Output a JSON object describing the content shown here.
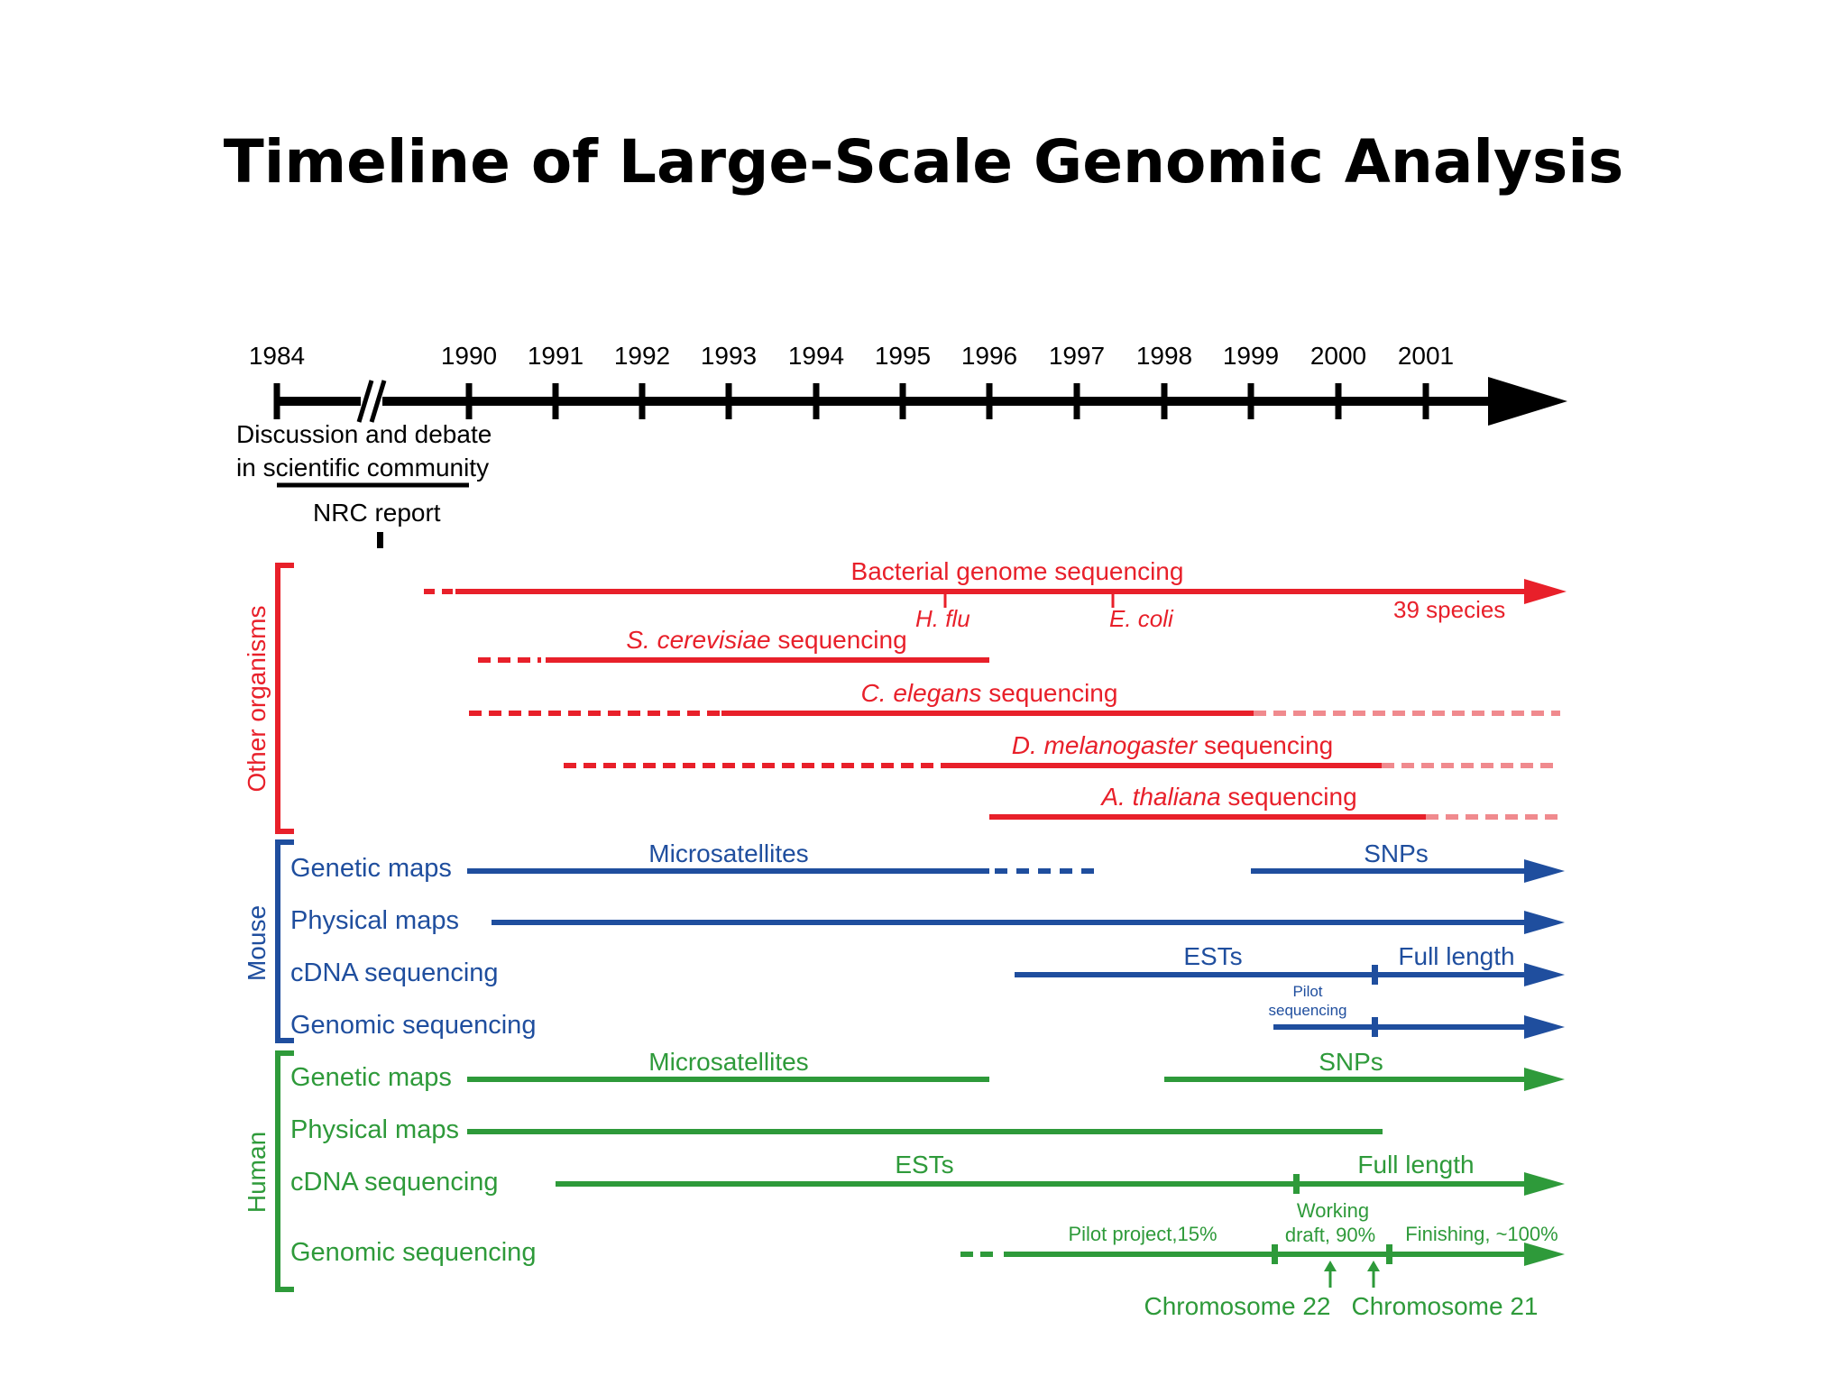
{
  "title": "Timeline of Large-Scale Genomic Analysis",
  "axis": {
    "years": [
      "1984",
      "1990",
      "1991",
      "1992",
      "1993",
      "1994",
      "1995",
      "1996",
      "1997",
      "1998",
      "1999",
      "2000",
      "2001"
    ]
  },
  "early": {
    "discussion_line1": "Discussion and debate",
    "discussion_line2": "in scientific community",
    "nrc_report": "NRC report"
  },
  "groups": {
    "other": {
      "label": "Other organisms",
      "color": "#e8202a"
    },
    "mouse": {
      "label": "Mouse",
      "color": "#1f4e9e"
    },
    "human": {
      "label": "Human",
      "color": "#2e9a3a"
    }
  },
  "other": {
    "bacterial": "Bacterial genome sequencing",
    "hflu": "H. flu",
    "ecoli": "E. coli",
    "species": "39 species",
    "scerevisiae_italic": "S. cerevisiae",
    "celegans_italic": "C. elegans",
    "dmelanogaster_italic": "D. melanogaster",
    "athaliana_italic": "A. thaliana",
    "sequencing_suffix": " sequencing"
  },
  "mouse": {
    "genetic_maps": "Genetic maps",
    "physical_maps": "Physical maps",
    "cdna_sequencing": "cDNA sequencing",
    "genomic_sequencing": "Genomic sequencing",
    "microsatellites": "Microsatellites",
    "snps": "SNPs",
    "ests": "ESTs",
    "full_length": "Full length",
    "pilot_line1": "Pilot",
    "pilot_line2": "sequencing"
  },
  "human": {
    "genetic_maps": "Genetic maps",
    "physical_maps": "Physical maps",
    "cdna_sequencing": "cDNA sequencing",
    "genomic_sequencing": "Genomic sequencing",
    "microsatellites": "Microsatellites",
    "snps": "SNPs",
    "ests": "ESTs",
    "full_length": "Full length",
    "working_line1": "Working",
    "working_line2": "draft, 90%",
    "pilot_project": "Pilot project,15%",
    "finishing": "Finishing, ~100%",
    "chromosome22": "Chromosome 22",
    "chromosome21": "Chromosome 21"
  }
}
